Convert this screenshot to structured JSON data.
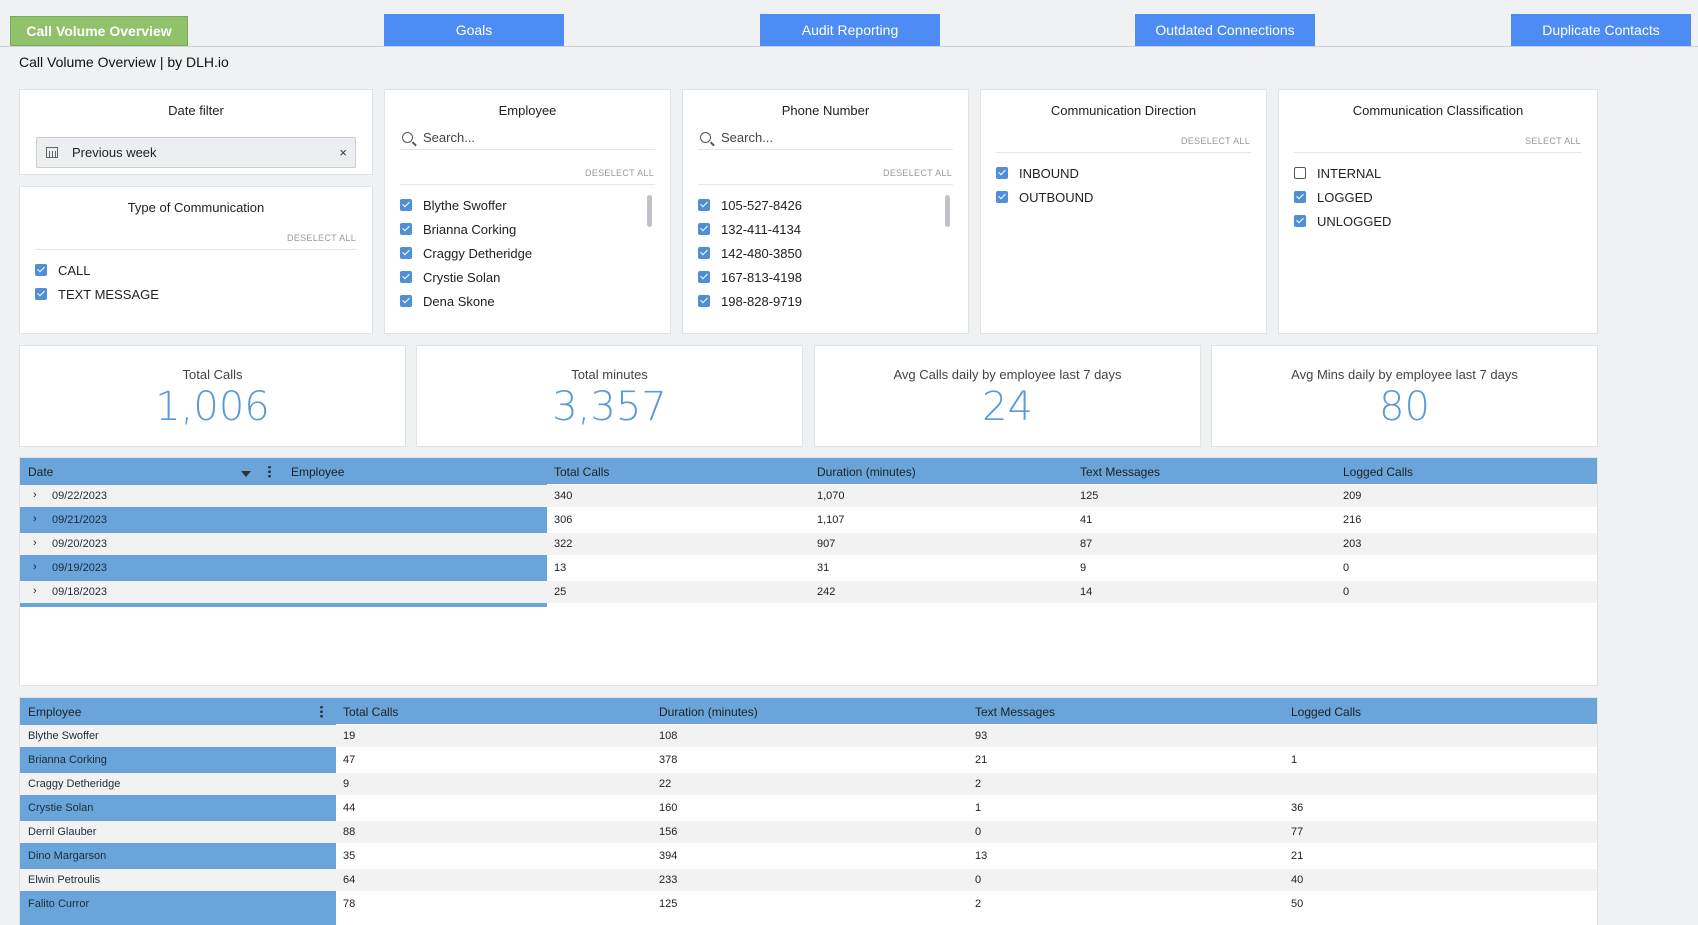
{
  "tabs": [
    {
      "label": "Call Volume Overview",
      "active": true
    },
    {
      "label": "Goals"
    },
    {
      "label": "Audit Reporting"
    },
    {
      "label": "Outdated Connections"
    },
    {
      "label": "Duplicate Contacts"
    }
  ],
  "page_title": "Call Volume Overview | by DLH.io",
  "date_filter": {
    "title": "Date filter",
    "value": "Previous week",
    "clear": "×"
  },
  "type_of_communication": {
    "title": "Type of Communication",
    "action": "DESELECT ALL",
    "options": [
      {
        "label": "CALL",
        "checked": true
      },
      {
        "label": "TEXT MESSAGE",
        "checked": true
      }
    ]
  },
  "employee_filter": {
    "title": "Employee",
    "search_placeholder": "Search...",
    "action": "DESELECT ALL",
    "options": [
      {
        "label": "Blythe Swoffer",
        "checked": true
      },
      {
        "label": "Brianna Corking",
        "checked": true
      },
      {
        "label": "Craggy Detheridge",
        "checked": true
      },
      {
        "label": "Crystie Solan",
        "checked": true
      },
      {
        "label": "Dena Skone",
        "checked": true
      }
    ]
  },
  "phone_filter": {
    "title": "Phone Number",
    "search_placeholder": "Search...",
    "action": "DESELECT ALL",
    "options": [
      {
        "label": "105-527-8426",
        "checked": true
      },
      {
        "label": "132-411-4134",
        "checked": true
      },
      {
        "label": "142-480-3850",
        "checked": true
      },
      {
        "label": "167-813-4198",
        "checked": true
      },
      {
        "label": "198-828-9719",
        "checked": true
      }
    ]
  },
  "direction_filter": {
    "title": "Communication Direction",
    "action": "DESELECT ALL",
    "options": [
      {
        "label": "INBOUND",
        "checked": true
      },
      {
        "label": "OUTBOUND",
        "checked": true
      }
    ]
  },
  "classification_filter": {
    "title": "Communication Classification",
    "action": "SELECT ALL",
    "options": [
      {
        "label": "INTERNAL",
        "checked": false
      },
      {
        "label": "LOGGED",
        "checked": true
      },
      {
        "label": "UNLOGGED",
        "checked": true
      }
    ]
  },
  "kpis": [
    {
      "title": "Total Calls",
      "value": "1,006"
    },
    {
      "title": "Total minutes",
      "value": "3,357"
    },
    {
      "title": "Avg Calls daily by employee last 7 days",
      "value": "24"
    },
    {
      "title": "Avg Mins daily by employee last 7 days",
      "value": "80"
    }
  ],
  "date_table": {
    "columns": [
      "Date",
      "Employee",
      "Total Calls",
      "Duration (minutes)",
      "Text Messages",
      "Logged Calls"
    ],
    "rows": [
      {
        "date": "09/22/2023",
        "total_calls": "340",
        "duration": "1,070",
        "texts": "125",
        "logged": "209"
      },
      {
        "date": "09/21/2023",
        "total_calls": "306",
        "duration": "1,107",
        "texts": "41",
        "logged": "216"
      },
      {
        "date": "09/20/2023",
        "total_calls": "322",
        "duration": "907",
        "texts": "87",
        "logged": "203"
      },
      {
        "date": "09/19/2023",
        "total_calls": "13",
        "duration": "31",
        "texts": "9",
        "logged": "0"
      },
      {
        "date": "09/18/2023",
        "total_calls": "25",
        "duration": "242",
        "texts": "14",
        "logged": "0"
      }
    ]
  },
  "employee_table": {
    "columns": [
      "Employee",
      "Total Calls",
      "Duration (minutes)",
      "Text Messages",
      "Logged Calls"
    ],
    "rows": [
      {
        "employee": "Blythe Swoffer",
        "total_calls": "19",
        "duration": "108",
        "texts": "93",
        "logged": ""
      },
      {
        "employee": "Brianna Corking",
        "total_calls": "47",
        "duration": "378",
        "texts": "21",
        "logged": "1"
      },
      {
        "employee": "Craggy Detheridge",
        "total_calls": "9",
        "duration": "22",
        "texts": "2",
        "logged": ""
      },
      {
        "employee": "Crystie Solan",
        "total_calls": "44",
        "duration": "160",
        "texts": "1",
        "logged": "36"
      },
      {
        "employee": "Derril Glauber",
        "total_calls": "88",
        "duration": "156",
        "texts": "0",
        "logged": "77"
      },
      {
        "employee": "Dino Margarson",
        "total_calls": "35",
        "duration": "394",
        "texts": "13",
        "logged": "21"
      },
      {
        "employee": "Elwin Petroulis",
        "total_calls": "64",
        "duration": "233",
        "texts": "0",
        "logged": "40"
      },
      {
        "employee": "Falito Curror",
        "total_calls": "78",
        "duration": "125",
        "texts": "2",
        "logged": "50"
      }
    ]
  },
  "colors": {
    "accent": "#4d8cf5",
    "active_tab": "#8fc26a",
    "table_header": "#69a4db",
    "kpi_value": "#5a9ad8",
    "checkbox": "#4f8fd6"
  }
}
